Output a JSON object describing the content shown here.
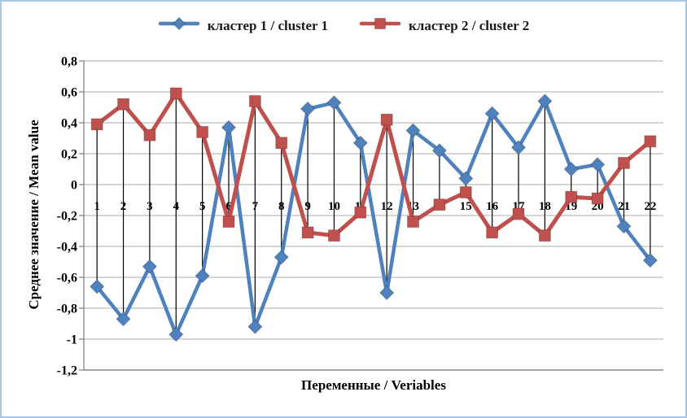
{
  "window": {
    "background": "#ffffff",
    "border_color": "#a9c6e2"
  },
  "legend": {
    "items": [
      {
        "label": "кластер 1 / cluster 1",
        "color": "#4f81bd",
        "marker": "diamond"
      },
      {
        "label": "кластер 2 / cluster 2",
        "color": "#c0504d",
        "marker": "square"
      }
    ]
  },
  "chart_data": {
    "type": "line",
    "title": "",
    "xlabel": "Переменные / Veriables",
    "ylabel": "Среднее значение / Mean value",
    "categories": [
      "1",
      "2",
      "3",
      "4",
      "5",
      "6",
      "7",
      "8",
      "9",
      "10",
      "11",
      "12",
      "13",
      "14",
      "15",
      "16",
      "17",
      "18",
      "19",
      "20",
      "21",
      "22"
    ],
    "series": [
      {
        "name": "кластер 1 / cluster 1",
        "color": "#4f81bd",
        "marker": "diamond",
        "values": [
          -0.66,
          -0.87,
          -0.53,
          -0.97,
          -0.59,
          0.37,
          -0.92,
          -0.47,
          0.49,
          0.53,
          0.27,
          -0.7,
          0.35,
          0.22,
          0.04,
          0.46,
          0.24,
          0.54,
          0.1,
          0.13,
          -0.27,
          -0.49
        ]
      },
      {
        "name": "кластер 2 / cluster 2",
        "color": "#c0504d",
        "marker": "square",
        "values": [
          0.39,
          0.52,
          0.32,
          0.59,
          0.34,
          -0.24,
          0.54,
          0.27,
          -0.31,
          -0.33,
          -0.18,
          0.42,
          -0.24,
          -0.13,
          -0.05,
          -0.31,
          -0.19,
          -0.33,
          -0.08,
          -0.09,
          0.14,
          0.28
        ]
      }
    ],
    "ylim": [
      -1.2,
      0.8
    ],
    "ytick_step": 0.2,
    "ytick_labels": [
      "0,8",
      "0,6",
      "0,4",
      "0,2",
      "0",
      "-0,2",
      "-0,4",
      "-0,6",
      "-0,8",
      "-1",
      "-1,2"
    ],
    "grid": true,
    "high_low_lines": true,
    "legend_position": "top",
    "styles": {
      "gridline_color": "#bdbdbd",
      "axis_color": "#8f8f8f",
      "high_low_line_color": "#000000",
      "text_color": "#000000"
    }
  }
}
